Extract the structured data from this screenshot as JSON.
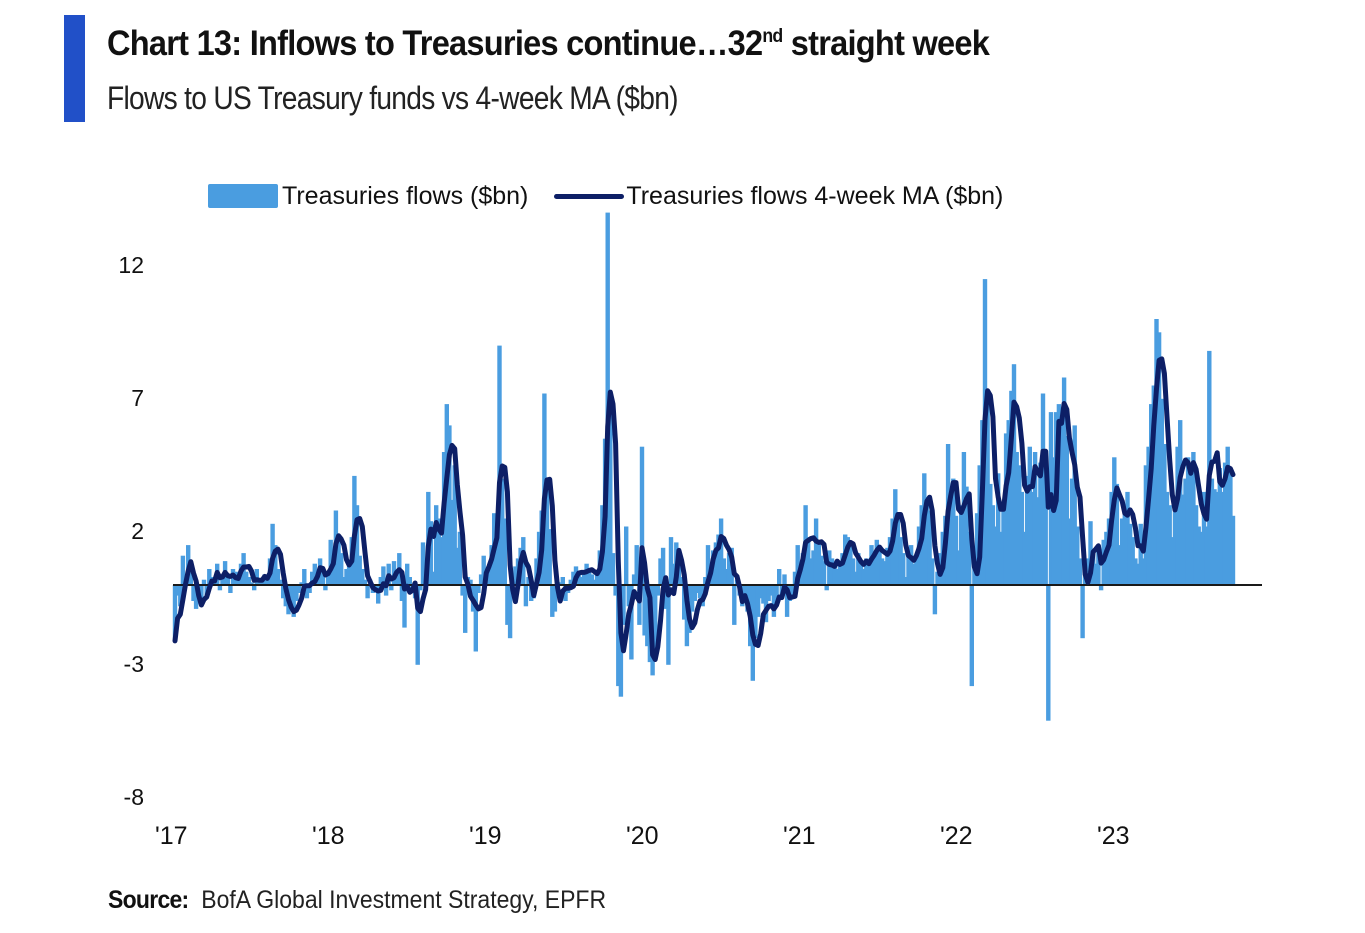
{
  "header": {
    "title_main": "Chart 13: Inflows to Treasuries continue…32",
    "title_sup": "nd",
    "title_end": " straight week",
    "subtitle": "Flows to US Treasury funds vs 4-week MA ($bn)"
  },
  "footer": {
    "source_label": "Source:",
    "source_text": "BofA Global Investment Strategy, EPFR"
  },
  "colors": {
    "accent": "#2150c8",
    "bars": "#4a9de0",
    "ma_line": "#0d1f66",
    "zero_line": "#1a1a1a"
  },
  "chart_data": {
    "type": "bar",
    "title": "Chart 13: Inflows to Treasuries continue…32nd straight week",
    "subtitle": "Flows to US Treasury funds vs 4-week MA ($bn)",
    "xlabel": "",
    "ylabel": "$bn",
    "ylim": [
      -8,
      12
    ],
    "yticks": [
      12,
      7,
      2,
      -3,
      -8
    ],
    "xticks": [
      "'17",
      "'18",
      "'19",
      "'20",
      "'21",
      "'22",
      "'23"
    ],
    "xtick_positions_weeks": [
      0,
      52,
      104,
      156,
      208,
      260,
      312
    ],
    "frequency": "weekly, Jan 2017 – Sep 2023",
    "grid": false,
    "legend": {
      "position": "top-center",
      "entries": [
        "Treasuries flows ($bn)",
        "Treasuries flows 4-week MA ($bn)"
      ]
    },
    "series": [
      {
        "name": "Treasuries flows ($bn)",
        "kind": "bar",
        "values": [
          -2.1,
          -0.4,
          -0.8,
          1.1,
          0.3,
          1.5,
          0.6,
          -0.6,
          -0.9,
          -0.7,
          -0.8,
          0.2,
          -0.5,
          0.6,
          0.3,
          0.2,
          0.8,
          -0.2,
          0.4,
          0.9,
          0.3,
          -0.3,
          0.6,
          0.5,
          0.2,
          0.8,
          1.2,
          0.5,
          0.3,
          0.1,
          -0.2,
          0.6,
          0.2,
          0.1,
          0.4,
          0.3,
          1.0,
          2.3,
          1.5,
          0.6,
          0.2,
          -0.5,
          -0.8,
          -1.1,
          -0.9,
          -1.2,
          -0.6,
          -0.3,
          0.1,
          0.6,
          -0.5,
          -0.3,
          0.5,
          0.8,
          0.3,
          1.0,
          0.4,
          -0.2,
          0.5,
          1.7,
          1.2,
          2.8,
          1.7,
          1.2,
          0.3,
          0.6,
          0.9,
          1.8,
          4.1,
          3.0,
          1.1,
          0.6,
          0.2,
          -0.5,
          0.2,
          -0.3,
          -0.1,
          -0.7,
          0.3,
          0.7,
          -0.4,
          0.8,
          -0.2,
          0.9,
          0.4,
          1.2,
          -0.6,
          -1.6,
          0.8,
          0.3,
          -0.3,
          -0.5,
          -3.0,
          -0.2,
          1.6,
          0.9,
          3.5,
          2.4,
          0.5,
          3.0,
          2.5,
          1.8,
          5.0,
          6.8,
          6.0,
          3.2,
          4.5,
          1.4,
          2.0,
          -0.4,
          -1.8,
          0.3,
          0.2,
          -1.0,
          -2.5,
          -0.3,
          0.4,
          1.1,
          0.6,
          0.7,
          1.5,
          2.7,
          2.2,
          9.0,
          4.0,
          2.5,
          -1.5,
          -2.0,
          0.3,
          0.7,
          1.0,
          1.4,
          1.8,
          -0.8,
          0.3,
          -0.6,
          -0.5,
          1.0,
          2.0,
          2.8,
          7.2,
          3.8,
          2.1,
          -1.2,
          -1.0,
          -0.3,
          0.1,
          0.3,
          -0.6,
          -0.3,
          0.2,
          0.5,
          0.7,
          0.4,
          0.3,
          0.5,
          0.8,
          0.6,
          0.4,
          0.2,
          0.5,
          1.3,
          3.0,
          5.5,
          14.0,
          6.5,
          1.2,
          -0.4,
          -3.8,
          -4.2,
          -1.5,
          2.2,
          -0.8,
          -2.8,
          0.4,
          1.5,
          -1.5,
          5.2,
          -1.9,
          -2.3,
          -2.9,
          -3.4,
          -2.6,
          -0.4,
          1.0,
          1.4,
          -0.9,
          -3.0,
          1.8,
          0.8,
          1.6,
          1.0,
          0.3,
          -1.3,
          -2.3,
          -1.8,
          -1.0,
          -0.6,
          -0.3,
          -0.5,
          -0.8,
          0.3,
          1.5,
          0.8,
          1.3,
          1.6,
          1.9,
          2.5,
          1.0,
          0.6,
          1.2,
          1.4,
          -1.5,
          0.2,
          -0.4,
          -0.8,
          -0.6,
          -1.0,
          -2.3,
          -3.6,
          -2.0,
          -1.2,
          -0.5,
          -0.7,
          -1.4,
          -0.6,
          -0.4,
          -1.2,
          -0.8,
          0.6,
          -0.5,
          0.4,
          -1.2,
          -0.6,
          -0.4,
          0.5,
          1.5,
          0.7,
          1.2,
          3.0,
          1.8,
          1.0,
          1.3,
          2.5,
          1.6,
          1.1,
          0.9,
          -0.2,
          1.3,
          1.0,
          0.7,
          0.6,
          0.8,
          1.2,
          1.9,
          1.8,
          1.5,
          1.0,
          0.5,
          1.2,
          0.8,
          0.6,
          1.0,
          0.8,
          1.5,
          1.2,
          1.7,
          1.3,
          1.0,
          0.9,
          1.4,
          1.8,
          2.5,
          3.6,
          2.7,
          1.8,
          1.2,
          0.3,
          1.1,
          1.5,
          0.8,
          1.0,
          2.2,
          3.0,
          4.2,
          3.2,
          2.8,
          1.0,
          -1.1,
          0.5,
          1.2,
          2.0,
          2.6,
          5.3,
          3.5,
          4.0,
          2.6,
          1.3,
          3.0,
          5.0,
          3.7,
          2.0,
          -3.8,
          0.8,
          2.7,
          4.5,
          6.2,
          11.5,
          7.0,
          3.8,
          3.0,
          2.2,
          4.2,
          2.0,
          3.0,
          5.7,
          6.2,
          7.3,
          8.3,
          5.0,
          4.5,
          3.5,
          2.0,
          4.1,
          5.2,
          3.5,
          5.0,
          3.3,
          4.6,
          7.2,
          5.0,
          -5.1,
          6.5,
          4.8,
          6.5,
          6.8,
          6.2,
          7.8,
          5.6,
          2.5,
          4.0,
          6.0,
          2.2,
          1.0,
          -2.0,
          0.4,
          1.0,
          2.4,
          1.2,
          0.8,
          1.5,
          -0.2,
          1.7,
          2.0,
          2.5,
          3.5,
          4.8,
          3.8,
          1.5,
          2.5,
          3.0,
          3.5,
          2.3,
          1.8,
          1.0,
          0.8,
          2.3,
          1.0,
          4.5,
          5.2,
          6.8,
          7.5,
          10.0,
          9.5,
          7.0,
          5.3,
          3.5,
          3.0,
          1.8,
          3.0,
          5.2,
          6.2,
          3.4,
          4.0,
          4.8,
          4.6,
          5.0,
          3.0,
          2.2,
          2.0,
          3.5,
          2.2,
          8.8,
          4.0,
          3.6,
          3.5,
          4.4,
          3.5,
          4.6,
          5.2,
          4.2,
          2.6
        ]
      },
      {
        "name": "Treasuries flows 4-week MA ($bn)",
        "kind": "line",
        "method": "4-week moving average of weekly flows"
      }
    ]
  }
}
